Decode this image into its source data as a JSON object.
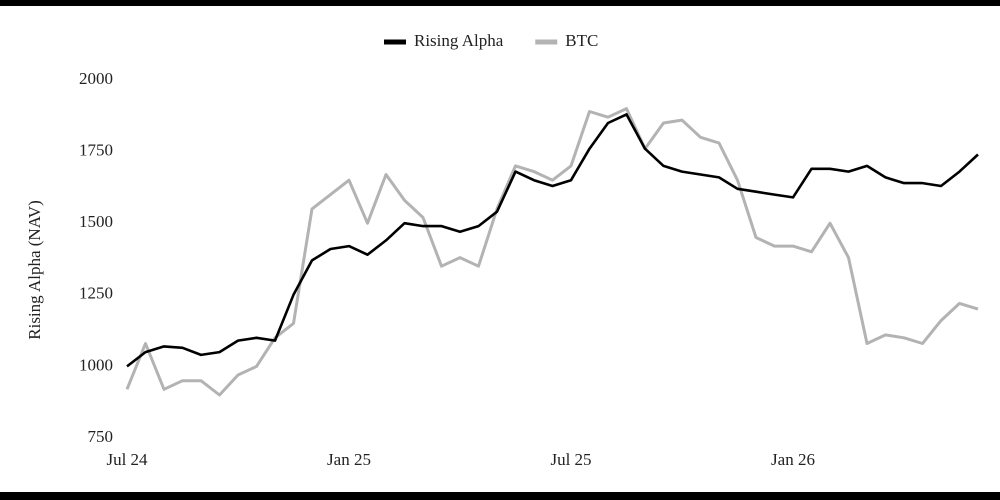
{
  "chart_data": {
    "type": "line",
    "y_label": "Rising Alpha (NAV)",
    "categories": [
      "Jul 24",
      null,
      null,
      null,
      null,
      null,
      null,
      null,
      null,
      null,
      null,
      null,
      "Jan 25",
      null,
      null,
      null,
      null,
      null,
      null,
      null,
      null,
      null,
      null,
      null,
      "Jul 25",
      null,
      null,
      null,
      null,
      null,
      null,
      null,
      null,
      null,
      null,
      null,
      "Jan 26",
      null,
      null,
      null,
      null,
      null,
      null,
      null,
      null,
      null,
      null
    ],
    "series": [
      {
        "name": "Rising Alpha",
        "color": "#000000",
        "values": [
          1000,
          1050,
          1070,
          1065,
          1040,
          1050,
          1090,
          1100,
          1090,
          1250,
          1370,
          1410,
          1420,
          1390,
          1440,
          1500,
          1490,
          1490,
          1470,
          1490,
          1540,
          1680,
          1650,
          1630,
          1650,
          1760,
          1850,
          1880,
          1760,
          1700,
          1680,
          1670,
          1660,
          1620,
          1610,
          1600,
          1590,
          1690,
          1690,
          1680,
          1700,
          1660,
          1640,
          1640,
          1630,
          1680,
          1740
        ]
      },
      {
        "name": "BTC",
        "color": "#b3b3b3",
        "values": [
          920,
          1080,
          920,
          950,
          950,
          900,
          970,
          1000,
          1100,
          1150,
          1550,
          1600,
          1650,
          1500,
          1670,
          1580,
          1520,
          1350,
          1380,
          1350,
          1550,
          1700,
          1680,
          1650,
          1700,
          1890,
          1870,
          1900,
          1760,
          1850,
          1860,
          1800,
          1780,
          1650,
          1450,
          1420,
          1420,
          1400,
          1500,
          1380,
          1080,
          1110,
          1100,
          1080,
          1160,
          1220,
          1200
        ]
      }
    ],
    "ylim": [
      750,
      2000
    ],
    "yticks": [
      750,
      1000,
      1250,
      1500,
      1750,
      2000
    ],
    "grid": false
  }
}
